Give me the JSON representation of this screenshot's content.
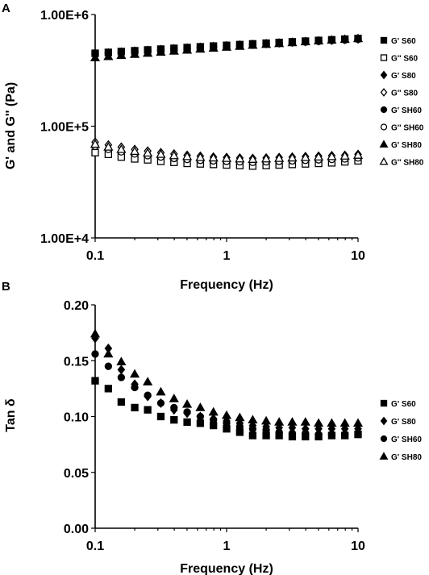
{
  "chart_data": [
    {
      "panel": "A",
      "type": "scatter",
      "xlabel": "Frequency (Hz)",
      "ylabel": "G' and G'' (Pa)",
      "x_scale": "log",
      "y_scale": "log",
      "xlim": [
        0.1,
        10
      ],
      "ylim": [
        10000,
        1000000
      ],
      "x_ticks": [
        0.1,
        1,
        10
      ],
      "x_tick_labels": [
        "0.1",
        "1",
        "10"
      ],
      "y_ticks": [
        10000,
        100000,
        1000000
      ],
      "y_tick_labels": [
        "1.00E+4",
        "1.00E+5",
        "1.00E+6"
      ],
      "grid": false,
      "legend_position": "right",
      "x": [
        0.1,
        0.126,
        0.158,
        0.2,
        0.251,
        0.316,
        0.398,
        0.501,
        0.631,
        0.794,
        1,
        1.26,
        1.58,
        2,
        2.51,
        3.16,
        3.98,
        5.01,
        6.31,
        7.94,
        10
      ],
      "series": [
        {
          "name": "G' S60",
          "marker": "square-filled",
          "values": [
            450000,
            458000,
            466000,
            474000,
            482000,
            490000,
            498000,
            506000,
            514000,
            522000,
            530000,
            538000,
            546000,
            554000,
            562000,
            570000,
            578000,
            586000,
            594000,
            602000,
            610000
          ]
        },
        {
          "name": "G'' S60",
          "marker": "square-open",
          "values": [
            58000,
            56000,
            53000,
            51000,
            50000,
            48500,
            47500,
            46500,
            46000,
            45500,
            45000,
            44500,
            44000,
            44500,
            45000,
            45500,
            46000,
            46500,
            47000,
            48000,
            49000
          ]
        },
        {
          "name": "G' S80",
          "marker": "diamond-filled",
          "values": [
            445000,
            453000,
            461000,
            469000,
            477000,
            485000,
            493000,
            501000,
            509000,
            517000,
            525000,
            533000,
            541000,
            549000,
            557000,
            565000,
            573000,
            581000,
            589000,
            597000,
            605000
          ]
        },
        {
          "name": "G'' S80",
          "marker": "diamond-open",
          "values": [
            72000,
            68000,
            65000,
            62000,
            60000,
            58000,
            56500,
            55000,
            54000,
            53000,
            52500,
            52000,
            51500,
            52000,
            52500,
            53000,
            53500,
            54000,
            54500,
            55000,
            56000
          ]
        },
        {
          "name": "G' SH60",
          "marker": "circle-filled",
          "values": [
            440000,
            448000,
            456000,
            464000,
            472000,
            480000,
            488000,
            496000,
            504000,
            512000,
            520000,
            528000,
            536000,
            544000,
            552000,
            560000,
            568000,
            576000,
            584000,
            592000,
            600000
          ]
        },
        {
          "name": "G'' SH60",
          "marker": "circle-open",
          "values": [
            66000,
            62000,
            59000,
            56500,
            54500,
            53000,
            51500,
            50500,
            49500,
            49000,
            48500,
            48000,
            47500,
            48000,
            48500,
            49000,
            49500,
            50000,
            50500,
            51000,
            52000
          ]
        },
        {
          "name": "G' SH80",
          "marker": "triangle-filled",
          "values": [
            410000,
            420000,
            430000,
            440000,
            450000,
            460000,
            470000,
            480000,
            490000,
            500000,
            510000,
            520000,
            530000,
            540000,
            550000,
            560000,
            570000,
            580000,
            590000,
            600000,
            610000
          ]
        },
        {
          "name": "G'' SH80",
          "marker": "triangle-open",
          "values": [
            69000,
            65000,
            62000,
            59500,
            57500,
            56000,
            54500,
            53500,
            52500,
            52000,
            51500,
            51000,
            50500,
            51000,
            51500,
            52000,
            52500,
            53000,
            53500,
            54000,
            55000
          ]
        }
      ]
    },
    {
      "panel": "B",
      "type": "scatter",
      "xlabel": "Frequency (Hz)",
      "ylabel": "Tan δ",
      "x_scale": "log",
      "y_scale": "linear",
      "xlim": [
        0.1,
        10
      ],
      "ylim": [
        0,
        0.2
      ],
      "x_ticks": [
        0.1,
        1,
        10
      ],
      "x_tick_labels": [
        "0.1",
        "1",
        "10"
      ],
      "y_ticks": [
        0,
        0.05,
        0.1,
        0.15,
        0.2
      ],
      "y_tick_labels": [
        "0.00",
        "0.05",
        "0.10",
        "0.15",
        "0.20"
      ],
      "grid": false,
      "legend_position": "right",
      "x": [
        0.1,
        0.126,
        0.158,
        0.2,
        0.251,
        0.316,
        0.398,
        0.501,
        0.631,
        0.794,
        1,
        1.26,
        1.58,
        2,
        2.51,
        3.16,
        3.98,
        5.01,
        6.31,
        7.94,
        10
      ],
      "series": [
        {
          "name": "G' S60",
          "marker": "square-filled",
          "values": [
            0.132,
            0.125,
            0.113,
            0.108,
            0.106,
            0.1,
            0.097,
            0.095,
            0.094,
            0.092,
            0.089,
            0.086,
            0.083,
            0.083,
            0.083,
            0.082,
            0.082,
            0.082,
            0.083,
            0.083,
            0.084
          ]
        },
        {
          "name": "G' S80",
          "marker": "diamond-filled",
          "values": [
            0.17,
            0.161,
            0.142,
            0.129,
            0.118,
            0.112,
            0.106,
            0.103,
            0.1,
            0.098,
            0.096,
            0.094,
            0.092,
            0.091,
            0.09,
            0.09,
            0.089,
            0.089,
            0.089,
            0.089,
            0.089
          ]
        },
        {
          "name": "G' SH60",
          "marker": "circle-filled",
          "values": [
            0.156,
            0.145,
            0.135,
            0.126,
            0.119,
            0.112,
            0.108,
            0.104,
            0.1,
            0.097,
            0.094,
            0.091,
            0.089,
            0.088,
            0.086,
            0.085,
            0.085,
            0.084,
            0.084,
            0.084,
            0.084
          ]
        },
        {
          "name": "G' SH80",
          "marker": "triangle-filled",
          "values": [
            0.174,
            0.156,
            0.149,
            0.138,
            0.131,
            0.122,
            0.116,
            0.111,
            0.108,
            0.104,
            0.101,
            0.099,
            0.097,
            0.096,
            0.095,
            0.095,
            0.095,
            0.094,
            0.094,
            0.094,
            0.094
          ]
        }
      ]
    }
  ]
}
